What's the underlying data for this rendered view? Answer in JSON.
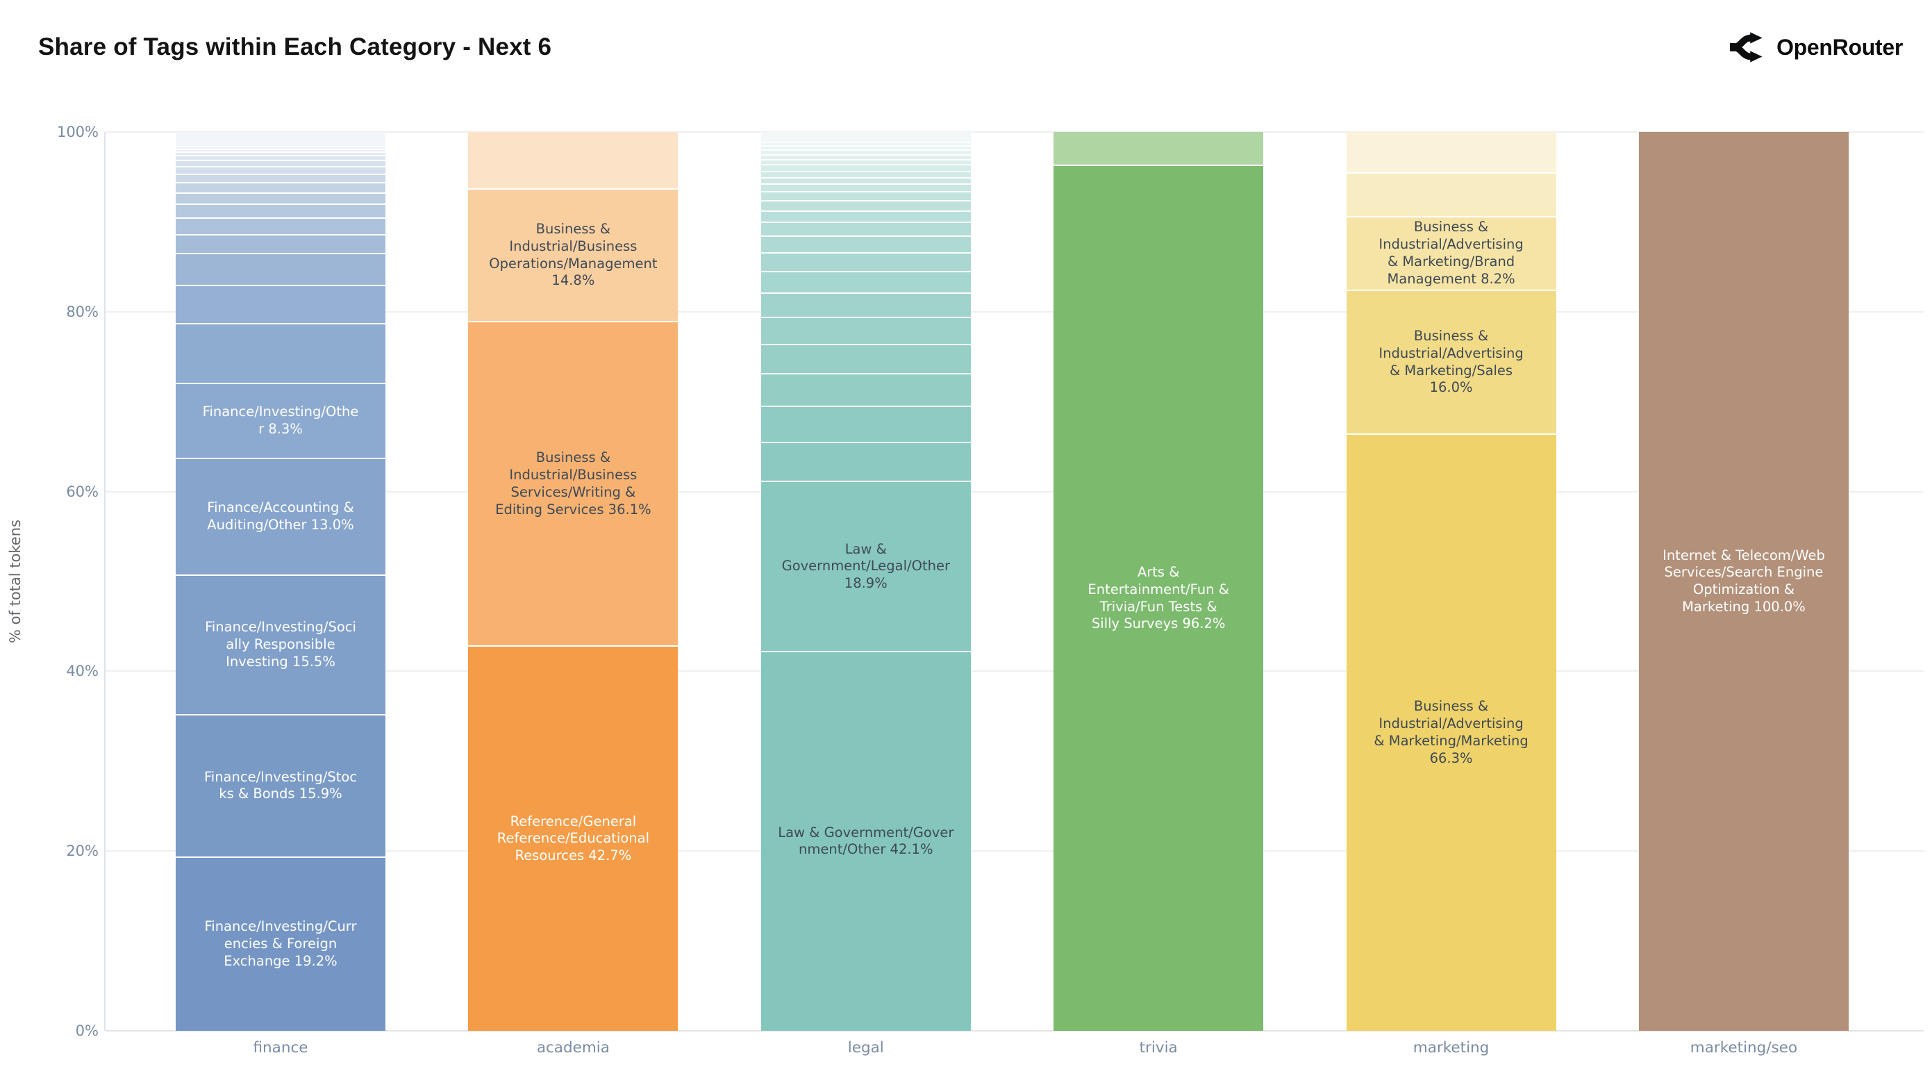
{
  "header": {
    "title": "Share of Tags within Each Category - Next 6",
    "logo_text": "OpenRouter"
  },
  "axes": {
    "y_title": "% of total tokens",
    "y_ticks": [
      {
        "label": "100%",
        "value": 100
      },
      {
        "label": "80%",
        "value": 80
      },
      {
        "label": "60%",
        "value": 60
      },
      {
        "label": "40%",
        "value": 40
      },
      {
        "label": "20%",
        "value": 20
      },
      {
        "label": "0%",
        "value": 0
      }
    ]
  },
  "colors": {
    "background": "#ffffff",
    "title_text": "#141414",
    "axis_text": "#7a8ba3",
    "y_title_text": "#63676b",
    "gridline": "#efefef",
    "segment_divider": "#ffffff",
    "dark_label_text": "#3f4a55",
    "light_label_text": "#ffffff",
    "logo_black": "#0c0d0e"
  },
  "chart_data": {
    "type": "bar",
    "stacked": true,
    "orientation": "vertical",
    "title": "Share of Tags within Each Category - Next 6",
    "xlabel": "",
    "ylabel": "% of total tokens",
    "ylim": [
      0,
      100
    ],
    "grid": true,
    "legend": false,
    "categories": [
      "finance",
      "academia",
      "legal",
      "trivia",
      "marketing",
      "marketing/seo"
    ],
    "bars": [
      {
        "category": "finance",
        "segments": [
          {
            "name": "",
            "label": "",
            "value": 1.7,
            "color": "#F2F6FA",
            "text": ""
          },
          {
            "name": "",
            "label": "",
            "value": 0.3,
            "color": "#EDF2F8",
            "text": ""
          },
          {
            "name": "",
            "label": "",
            "value": 0.3,
            "color": "#E8EEF5",
            "text": ""
          },
          {
            "name": "",
            "label": "",
            "value": 0.4,
            "color": "#E3EAF3",
            "text": ""
          },
          {
            "name": "",
            "label": "",
            "value": 0.55,
            "color": "#DDE6F0",
            "text": ""
          },
          {
            "name": "",
            "label": "",
            "value": 0.7,
            "color": "#D7E1ED",
            "text": ""
          },
          {
            "name": "",
            "label": "",
            "value": 0.85,
            "color": "#D1DDEB",
            "text": ""
          },
          {
            "name": "",
            "label": "",
            "value": 0.95,
            "color": "#CAD8E8",
            "text": ""
          },
          {
            "name": "",
            "label": "",
            "value": 1.1,
            "color": "#C3D3E5",
            "text": ""
          },
          {
            "name": "",
            "label": "",
            "value": 1.3,
            "color": "#BCCDE2",
            "text": ""
          },
          {
            "name": "",
            "label": "",
            "value": 1.55,
            "color": "#B5C8DF",
            "text": ""
          },
          {
            "name": "",
            "label": "",
            "value": 1.8,
            "color": "#ADC2DC",
            "text": ""
          },
          {
            "name": "",
            "label": "",
            "value": 2.1,
            "color": "#A5BCD9",
            "text": ""
          },
          {
            "name": "",
            "label": "",
            "value": 3.55,
            "color": "#9DB6D6",
            "text": ""
          },
          {
            "name": "",
            "label": "",
            "value": 4.25,
            "color": "#95B0D3",
            "text": ""
          },
          {
            "name": "",
            "label": "",
            "value": 6.7,
            "color": "#8EABD0",
            "text": ""
          },
          {
            "name": "Finance/Investing/Other",
            "label": "Finance/Investing/Othe\nr 8.3%",
            "value": 8.3,
            "color": "#8CA9CF",
            "text": "#FFFFFF"
          },
          {
            "name": "Finance/Accounting & Auditing/Other",
            "label": "Finance/Accounting &\nAuditing/Other 13.0%",
            "value": 13.0,
            "color": "#86A4CC",
            "text": "#FFFFFF"
          },
          {
            "name": "Finance/Investing/Socially Responsible Investing",
            "label": "Finance/Investing/Soci\nally Responsible\nInvesting 15.5%",
            "value": 15.5,
            "color": "#809FC9",
            "text": "#FFFFFF"
          },
          {
            "name": "Finance/Investing/Stocks & Bonds",
            "label": "Finance/Investing/Stoc\nks & Bonds 15.9%",
            "value": 15.9,
            "color": "#7A9AC6",
            "text": "#FFFFFF"
          },
          {
            "name": "Finance/Investing/Currencies & Foreign Exchange",
            "label": "Finance/Investing/Curr\nencies & Foreign\nExchange 19.2%",
            "value": 19.2,
            "color": "#7596C4",
            "text": "#FFFFFF"
          }
        ]
      },
      {
        "category": "academia",
        "segments": [
          {
            "name": "",
            "label": "",
            "value": 6.4,
            "color": "#FCE3C8",
            "text": ""
          },
          {
            "name": "Business & Industrial/Business Operations/Management",
            "label": "Business &\nIndustrial/Business\nOperations/Management\n14.8%",
            "value": 14.8,
            "color": "#FACFA0",
            "text": "#3F4A55"
          },
          {
            "name": "Business & Industrial/Business Services/Writing & Editing Services",
            "label": "Business &\nIndustrial/Business\nServices/Writing &\nEditing Services 36.1%",
            "value": 36.1,
            "color": "#F7B272",
            "text": "#3F4A55"
          },
          {
            "name": "Reference/General Reference/Educational Resources",
            "label": "Reference/General\nReference/Educational\nResources 42.7%",
            "value": 42.7,
            "color": "#F49C47",
            "text": "#FFFFFF"
          }
        ]
      },
      {
        "category": "legal",
        "segments": [
          {
            "name": "",
            "label": "",
            "value": 1.2,
            "color": "#F2F8F8",
            "text": ""
          },
          {
            "name": "",
            "label": "",
            "value": 0.45,
            "color": "#EDF6F5",
            "text": ""
          },
          {
            "name": "",
            "label": "",
            "value": 0.45,
            "color": "#E9F4F3",
            "text": ""
          },
          {
            "name": "",
            "label": "",
            "value": 0.5,
            "color": "#E4F2F1",
            "text": ""
          },
          {
            "name": "",
            "label": "",
            "value": 0.55,
            "color": "#E0F0EE",
            "text": ""
          },
          {
            "name": "",
            "label": "",
            "value": 0.6,
            "color": "#DBEEEC",
            "text": ""
          },
          {
            "name": "",
            "label": "",
            "value": 0.7,
            "color": "#D6ECE9",
            "text": ""
          },
          {
            "name": "",
            "label": "",
            "value": 0.7,
            "color": "#D2EAE7",
            "text": ""
          },
          {
            "name": "",
            "label": "",
            "value": 0.75,
            "color": "#CDE8E4",
            "text": ""
          },
          {
            "name": "",
            "label": "",
            "value": 0.85,
            "color": "#C8E6E2",
            "text": ""
          },
          {
            "name": "",
            "label": "",
            "value": 1.0,
            "color": "#C3E3DF",
            "text": ""
          },
          {
            "name": "",
            "label": "",
            "value": 1.15,
            "color": "#BEE1DC",
            "text": ""
          },
          {
            "name": "",
            "label": "",
            "value": 1.25,
            "color": "#B9DFDA",
            "text": ""
          },
          {
            "name": "",
            "label": "",
            "value": 1.55,
            "color": "#B4DDD7",
            "text": ""
          },
          {
            "name": "",
            "label": "",
            "value": 1.8,
            "color": "#AFDAD4",
            "text": ""
          },
          {
            "name": "",
            "label": "",
            "value": 2.1,
            "color": "#AAD8D1",
            "text": ""
          },
          {
            "name": "",
            "label": "",
            "value": 2.4,
            "color": "#A5D6CF",
            "text": ""
          },
          {
            "name": "",
            "label": "",
            "value": 2.7,
            "color": "#A0D3CC",
            "text": ""
          },
          {
            "name": "",
            "label": "",
            "value": 3.0,
            "color": "#9BD1C9",
            "text": ""
          },
          {
            "name": "",
            "label": "",
            "value": 3.3,
            "color": "#97CFC7",
            "text": ""
          },
          {
            "name": "",
            "label": "",
            "value": 3.6,
            "color": "#93CDC4",
            "text": ""
          },
          {
            "name": "",
            "label": "",
            "value": 4.0,
            "color": "#8FCBC2",
            "text": ""
          },
          {
            "name": "",
            "label": "",
            "value": 4.4,
            "color": "#8CC9C0",
            "text": ""
          },
          {
            "name": "Law & Government/Legal/Other",
            "label": "Law &\nGovernment/Legal/Other\n18.9%",
            "value": 18.9,
            "color": "#89C8BE",
            "text": "#3F4A55"
          },
          {
            "name": "Law & Government/Government/Other",
            "label": "Law & Government/Gover\nnment/Other 42.1%",
            "value": 42.1,
            "color": "#85C6BC",
            "text": "#3F4A55"
          }
        ]
      },
      {
        "category": "trivia",
        "segments": [
          {
            "name": "",
            "label": "",
            "value": 3.8,
            "color": "#AFD5A3",
            "text": ""
          },
          {
            "name": "Arts & Entertainment/Fun & Trivia/Fun Tests & Silly Surveys",
            "label": "Arts &\nEntertainment/Fun &\nTrivia/Fun Tests &\nSilly Surveys 96.2%",
            "value": 96.2,
            "color": "#7CBA6E",
            "text": "#FFFFFF"
          }
        ]
      },
      {
        "category": "marketing",
        "segments": [
          {
            "name": "",
            "label": "",
            "value": 4.6,
            "color": "#FBF3D9",
            "text": ""
          },
          {
            "name": "",
            "label": "",
            "value": 4.9,
            "color": "#F8ECC2",
            "text": ""
          },
          {
            "name": "Business & Industrial/Advertising & Marketing/Brand Management",
            "label": "Business &\nIndustrial/Advertising\n& Marketing/Brand\nManagement 8.2%",
            "value": 8.2,
            "color": "#F6E4A6",
            "text": "#3F4A55"
          },
          {
            "name": "Business & Industrial/Advertising & Marketing/Sales",
            "label": "Business &\nIndustrial/Advertising\n& Marketing/Sales\n16.0%",
            "value": 16.0,
            "color": "#F2DB87",
            "text": "#3F4A55"
          },
          {
            "name": "Business & Industrial/Advertising & Marketing/Marketing",
            "label": "Business &\nIndustrial/Advertising\n& Marketing/Marketing\n66.3%",
            "value": 66.3,
            "color": "#EFD269, ",
            "text": "#3F4A55"
          }
        ]
      },
      {
        "category": "marketing/seo",
        "segments": [
          {
            "name": "Internet & Telecom/Web Services/Search Engine Optimization & Marketing",
            "label": "Internet & Telecom/Web\nServices/Search Engine\nOptimization &\nMarketing 100.0%",
            "value": 100.0,
            "color": "#B29079",
            "text": "#FFFFFF"
          }
        ]
      }
    ]
  }
}
